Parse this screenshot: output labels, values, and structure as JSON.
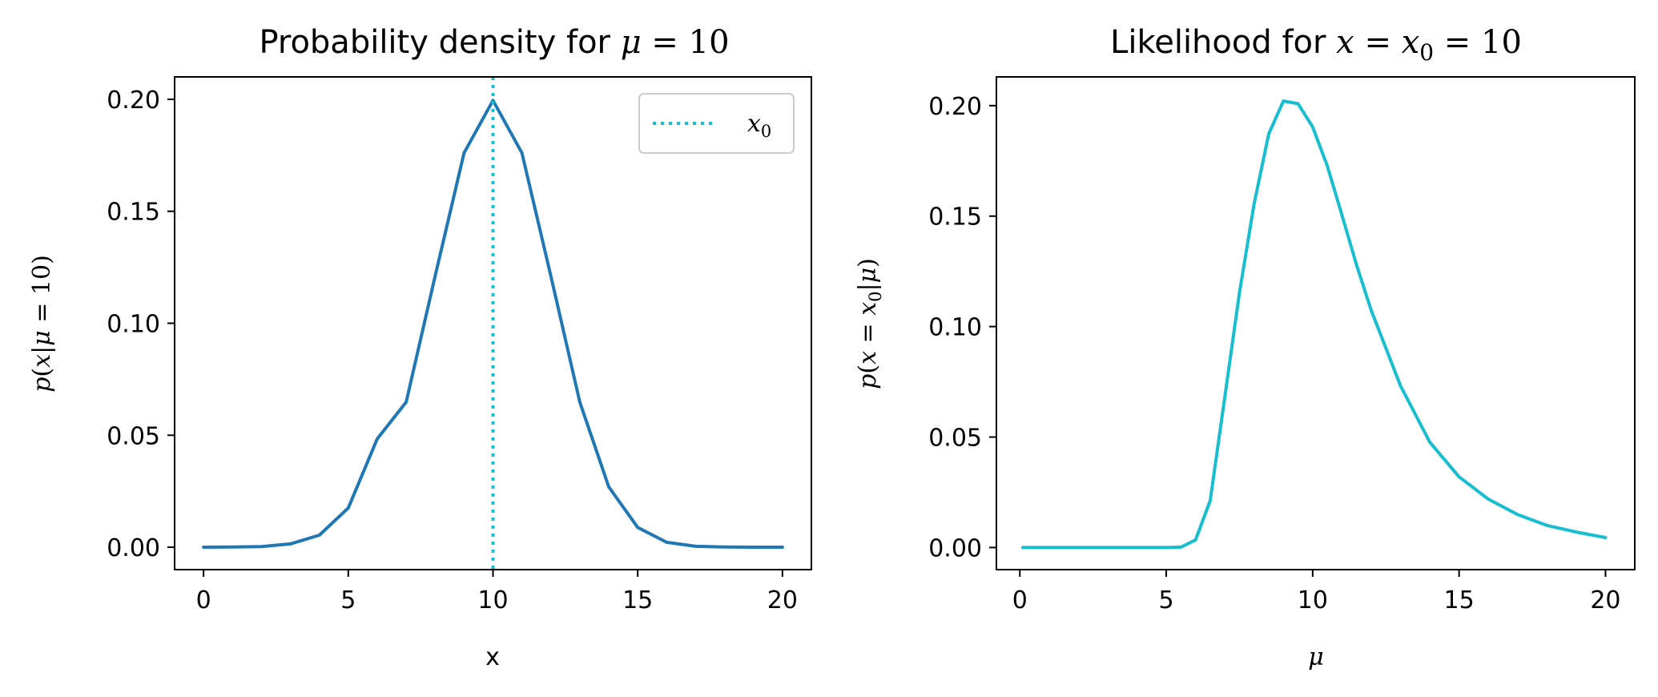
{
  "chart_data": [
    {
      "type": "line",
      "title": {
        "lead": "Probability density for ",
        "var": "μ",
        "rest": " = 10"
      },
      "xlabel": "x",
      "ylabel": {
        "p": "p",
        "open": "(",
        "x": "x",
        "bar": "|",
        "mu": "μ",
        "eq": " = 10)"
      },
      "xlim": [
        -1,
        21
      ],
      "ylim": [
        -0.01,
        0.21
      ],
      "x_ticks": [
        0,
        5,
        10,
        15,
        20
      ],
      "x_tick_labels": [
        "0",
        "5",
        "10",
        "15",
        "20"
      ],
      "y_ticks": [
        0.0,
        0.05,
        0.1,
        0.15,
        0.2
      ],
      "y_tick_labels": [
        "0.00",
        "0.05",
        "0.10",
        "0.15",
        "0.20"
      ],
      "grid": false,
      "legend_position": "top-right",
      "series": [
        {
          "color": "#1f77b4",
          "style": "solid",
          "x": [
            0,
            1,
            2,
            3,
            4,
            5,
            6,
            7,
            8,
            9,
            10,
            11,
            12,
            13,
            14,
            15,
            16,
            17,
            18,
            19,
            20
          ],
          "y": [
            0.0,
            0.0001,
            0.0003,
            0.0015,
            0.0054,
            0.0175,
            0.0484,
            0.0648,
            0.121,
            0.1761,
            0.1995,
            0.1761,
            0.121,
            0.0648,
            0.027,
            0.0088,
            0.0022,
            0.0004,
            0.0001,
            0.0,
            0.0
          ]
        },
        {
          "name": "x0",
          "legend": {
            "base": "x",
            "sub": "0"
          },
          "color": "#17becf",
          "style": "dotted",
          "x_vertical": 10
        }
      ]
    },
    {
      "type": "line",
      "title": {
        "lead": "Likelihood for ",
        "var": "x",
        "eq": " = ",
        "var2": "x",
        "sub": "0",
        "rest": " = 10"
      },
      "xlabel": "μ",
      "ylabel": {
        "p": "p",
        "open": "(",
        "x": "x",
        "eq": " = ",
        "x2": "x",
        "sub": "0",
        "bar": "|",
        "mu": "μ",
        "close": ")"
      },
      "xlim": [
        -0.8,
        21
      ],
      "ylim": [
        -0.01,
        0.213
      ],
      "x_ticks": [
        0,
        5,
        10,
        15,
        20
      ],
      "x_tick_labels": [
        "0",
        "5",
        "10",
        "15",
        "20"
      ],
      "y_ticks": [
        0.0,
        0.05,
        0.1,
        0.15,
        0.2
      ],
      "y_tick_labels": [
        "0.00",
        "0.05",
        "0.10",
        "0.15",
        "0.20"
      ],
      "grid": false,
      "series": [
        {
          "color": "#17becf",
          "style": "solid",
          "x": [
            0.1,
            1,
            2,
            3,
            4,
            5,
            5.5,
            6,
            6.5,
            7,
            7.5,
            8,
            8.5,
            9,
            9.5,
            10,
            10.5,
            11,
            11.5,
            12,
            13,
            14,
            15,
            16,
            17,
            18,
            19,
            20
          ],
          "y": [
            0.0,
            0.0,
            0.0,
            0.0,
            0.0,
            0.0,
            0.0002,
            0.0034,
            0.0212,
            0.0682,
            0.1152,
            0.1555,
            0.1872,
            0.2021,
            0.2009,
            0.1904,
            0.1727,
            0.1505,
            0.1278,
            0.1073,
            0.0732,
            0.0477,
            0.032,
            0.0219,
            0.0149,
            0.01,
            0.007,
            0.0045
          ]
        }
      ]
    }
  ]
}
